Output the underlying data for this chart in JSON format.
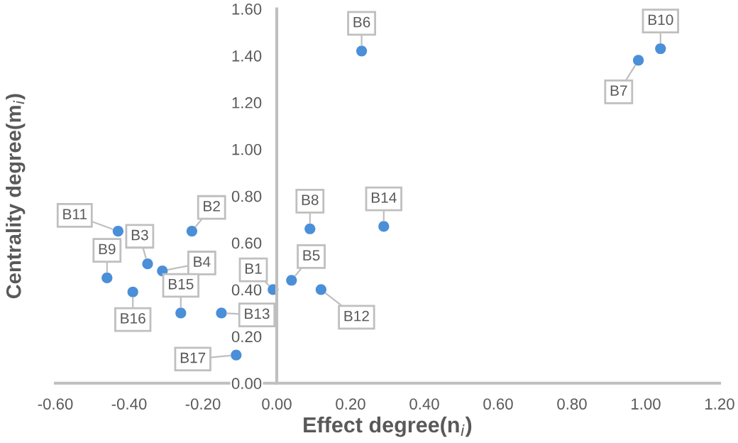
{
  "chart_data": {
    "type": "scatter",
    "xlabel": "Effect degree(n$_{i}$)",
    "ylabel": "Centrality degree(m$_{i}$)",
    "x": [
      -0.01,
      -0.23,
      -0.35,
      -0.31,
      0.04,
      0.23,
      0.98,
      0.09,
      -0.46,
      1.04,
      -0.43,
      0.12,
      -0.15,
      0.29,
      -0.26,
      -0.39,
      -0.11
    ],
    "series": [
      {
        "color": "#4a8fd8",
        "values": [
          0.4,
          0.65,
          0.51,
          0.48,
          0.44,
          1.42,
          1.38,
          0.66,
          0.45,
          1.43,
          0.65,
          0.4,
          0.3,
          0.67,
          0.3,
          0.39,
          0.12
        ]
      }
    ],
    "annotations": [
      {
        "text": "B1",
        "x": -0.01,
        "y": 0.4
      },
      {
        "text": "B2",
        "x": -0.23,
        "y": 0.65
      },
      {
        "text": "B3",
        "x": -0.35,
        "y": 0.51
      },
      {
        "text": "B4",
        "x": -0.31,
        "y": 0.48
      },
      {
        "text": "B5",
        "x": 0.04,
        "y": 0.44
      },
      {
        "text": "B6",
        "x": 0.23,
        "y": 1.42
      },
      {
        "text": "B7",
        "x": 0.98,
        "y": 1.38
      },
      {
        "text": "B8",
        "x": 0.09,
        "y": 0.66
      },
      {
        "text": "B9",
        "x": -0.46,
        "y": 0.45
      },
      {
        "text": "B10",
        "x": 1.04,
        "y": 1.43
      },
      {
        "text": "B11",
        "x": -0.43,
        "y": 0.65
      },
      {
        "text": "B12",
        "x": 0.12,
        "y": 0.4
      },
      {
        "text": "B13",
        "x": -0.15,
        "y": 0.3
      },
      {
        "text": "B14",
        "x": 0.29,
        "y": 0.67
      },
      {
        "text": "B15",
        "x": -0.26,
        "y": 0.3
      },
      {
        "text": "B16",
        "x": -0.39,
        "y": 0.39
      },
      {
        "text": "B17",
        "x": -0.11,
        "y": 0.12
      }
    ],
    "xlim": [
      -0.6,
      1.2
    ],
    "ylim": [
      0,
      1.6
    ],
    "xticks": [
      {
        "value": -0.6,
        "label": "-0.60"
      },
      {
        "value": -0.4,
        "label": "-0.40"
      },
      {
        "value": -0.2,
        "label": "-0.20"
      },
      {
        "value": 0,
        "label": "0.00"
      },
      {
        "value": 0.2,
        "label": "0.20"
      },
      {
        "value": 0.4,
        "label": "0.40"
      },
      {
        "value": 0.6,
        "label": "0.60"
      },
      {
        "value": 0.8,
        "label": "0.80"
      },
      {
        "value": 1.0,
        "label": "1.00"
      },
      {
        "value": 1.2,
        "label": "1.20"
      }
    ],
    "yticks": [
      {
        "value": 0,
        "label": "0.00"
      },
      {
        "value": 0.2,
        "label": "0.20"
      },
      {
        "value": 0.4,
        "label": "0.40"
      },
      {
        "value": 0.6,
        "label": "0.60"
      },
      {
        "value": 0.8,
        "label": "0.80"
      },
      {
        "value": 1.0,
        "label": "1.00"
      },
      {
        "value": 1.2,
        "label": "1.20"
      },
      {
        "value": 1.4,
        "label": "1.40"
      },
      {
        "value": 1.6,
        "label": "1.60"
      }
    ],
    "marker": "circle",
    "grid": false,
    "legend": false
  }
}
